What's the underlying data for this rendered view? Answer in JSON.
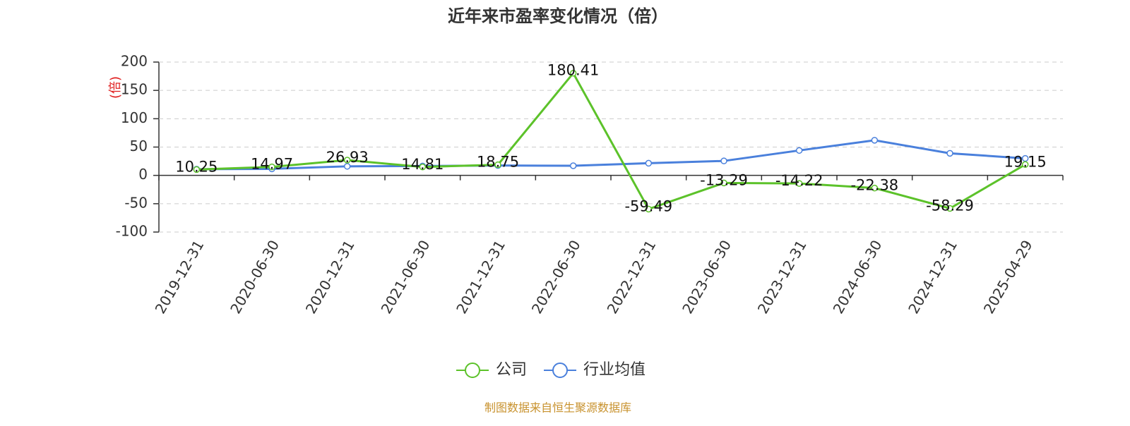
{
  "chart_data": {
    "type": "line",
    "title": "近年来市盈率变化情况（倍）",
    "y_label": "(倍)",
    "source": "制图数据来自恒生聚源数据库",
    "categories": [
      "2019-12-31",
      "2020-06-30",
      "2020-12-31",
      "2021-06-30",
      "2021-12-31",
      "2022-06-30",
      "2022-12-31",
      "2023-06-30",
      "2023-12-31",
      "2024-06-30",
      "2024-12-31",
      "2025-04-29"
    ],
    "series": [
      {
        "name": "公司",
        "color": "#5cc22a",
        "values": [
          10.25,
          14.97,
          26.93,
          14.81,
          18.75,
          180.41,
          -59.49,
          -13.29,
          -14.22,
          -22.38,
          -58.29,
          19.15
        ],
        "show_labels": true
      },
      {
        "name": "行业均值",
        "color": "#4a80dc",
        "values": [
          11,
          11.5,
          16,
          16.5,
          17.5,
          17,
          21.5,
          25.5,
          44,
          62,
          39,
          30
        ],
        "show_labels": false
      }
    ],
    "ylim": [
      -100,
      200
    ],
    "yticks": [
      -100,
      -50,
      0,
      50,
      100,
      150,
      200
    ],
    "grid": true
  }
}
